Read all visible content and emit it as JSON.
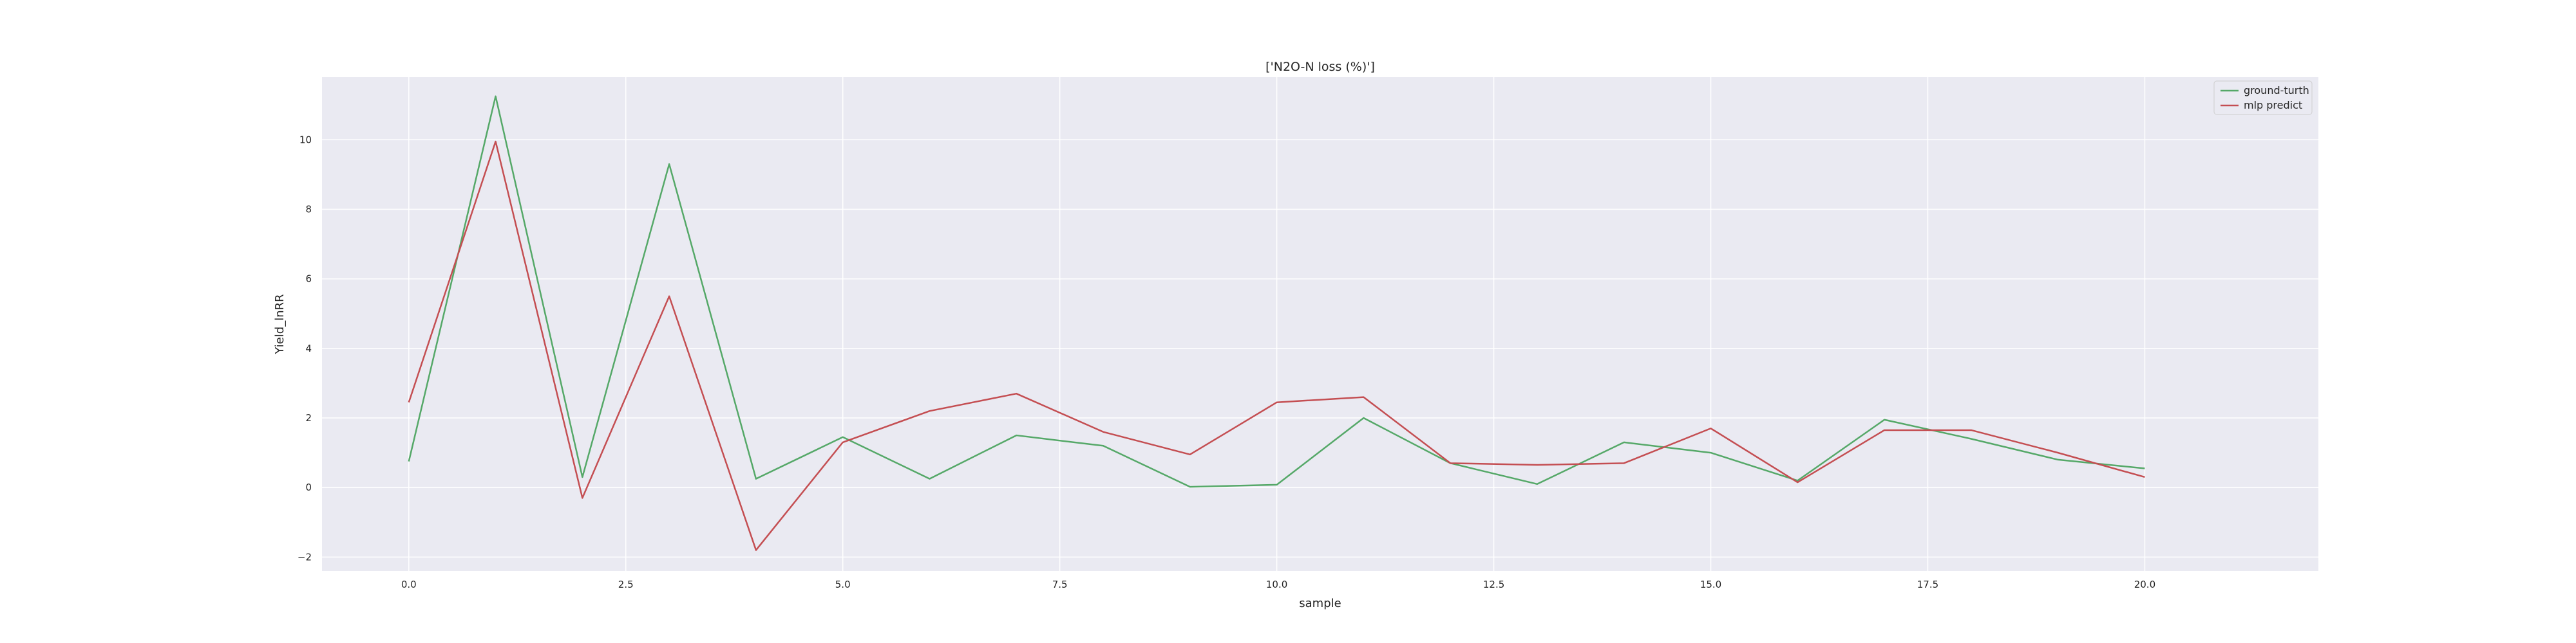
{
  "chart_data": {
    "type": "line",
    "title": "['N2O-N loss (%)']",
    "xlabel": "sample",
    "ylabel": "Yield_lnRR",
    "xlim": [
      -1,
      22
    ],
    "ylim": [
      -2.4,
      11.8
    ],
    "xticks": [
      0.0,
      2.5,
      5.0,
      7.5,
      10.0,
      12.5,
      15.0,
      17.5,
      20.0
    ],
    "xtick_labels": [
      "0.0",
      "2.5",
      "5.0",
      "7.5",
      "10.0",
      "12.5",
      "15.0",
      "17.5",
      "20.0"
    ],
    "yticks": [
      -2,
      0,
      2,
      4,
      6,
      8,
      10
    ],
    "ytick_labels": [
      "−2",
      "0",
      "2",
      "4",
      "6",
      "8",
      "10"
    ],
    "grid": true,
    "legend_position": "top-right",
    "x": [
      0,
      1,
      2,
      3,
      4,
      5,
      6,
      7,
      8,
      9,
      10,
      11,
      12,
      13,
      14,
      15,
      16,
      17,
      18,
      19,
      20
    ],
    "series": [
      {
        "name": "ground-turth",
        "color": "#55a868",
        "values": [
          0.75,
          11.25,
          0.3,
          9.3,
          0.25,
          1.45,
          0.25,
          1.5,
          1.2,
          0.02,
          0.08,
          2.0,
          0.7,
          0.1,
          1.3,
          1.0,
          0.2,
          1.95,
          1.4,
          0.8,
          0.55
        ]
      },
      {
        "name": "mlp predict",
        "color": "#c44e52",
        "values": [
          2.45,
          9.95,
          -0.3,
          5.5,
          -1.8,
          1.3,
          2.2,
          2.7,
          1.6,
          0.95,
          2.45,
          2.6,
          0.7,
          0.65,
          0.7,
          1.7,
          0.15,
          1.65,
          1.65,
          1.0,
          0.3
        ]
      }
    ]
  }
}
